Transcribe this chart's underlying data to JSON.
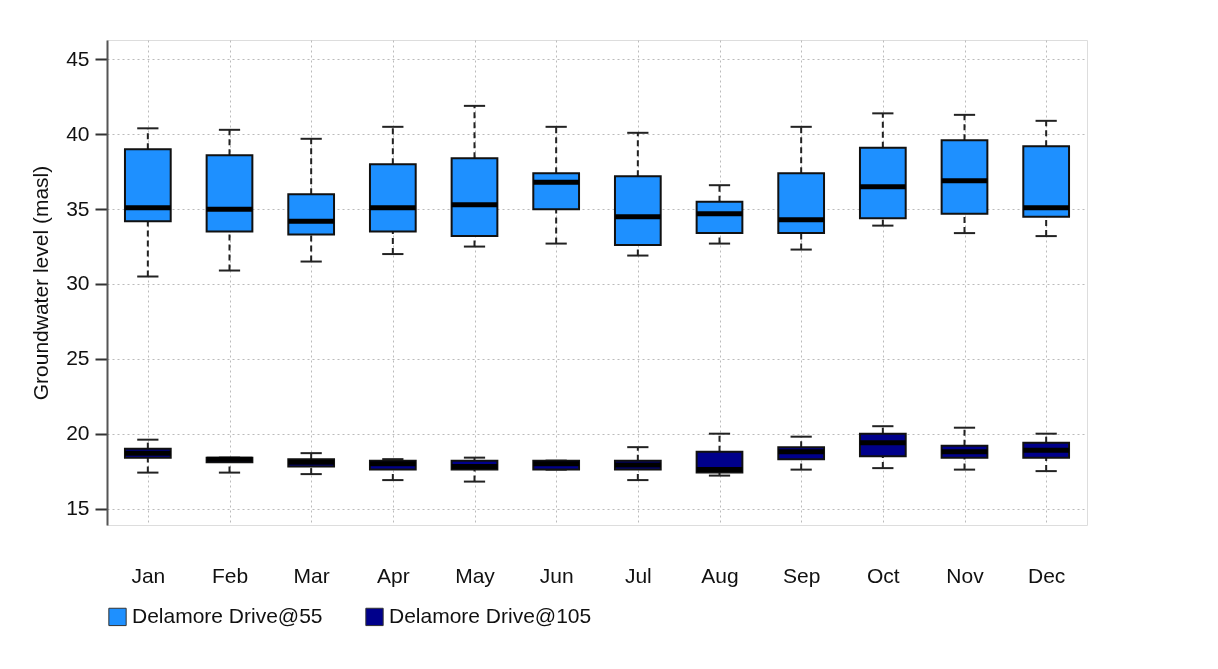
{
  "chart_data": {
    "type": "box",
    "ylabel": "Groundwater level (masl)",
    "categories": [
      "Jan",
      "Feb",
      "Mar",
      "Apr",
      "May",
      "Jun",
      "Jul",
      "Aug",
      "Sep",
      "Oct",
      "Nov",
      "Dec"
    ],
    "ylim": [
      13.9,
      46.3
    ],
    "yticks": [
      15,
      20,
      25,
      30,
      35,
      40,
      45
    ],
    "grid": true,
    "legend": "bottom",
    "series": [
      {
        "name": "Delamore Drive@55",
        "color": "#1e90ff",
        "boxes": [
          {
            "low": 30.5,
            "q1": 34.2,
            "median": 35.1,
            "q3": 39.0,
            "high": 40.4
          },
          {
            "low": 30.9,
            "q1": 33.5,
            "median": 35.0,
            "q3": 38.6,
            "high": 40.3
          },
          {
            "low": 31.5,
            "q1": 33.3,
            "median": 34.2,
            "q3": 36.0,
            "high": 39.7
          },
          {
            "low": 32.0,
            "q1": 33.5,
            "median": 35.1,
            "q3": 38.0,
            "high": 40.5
          },
          {
            "low": 32.5,
            "q1": 33.2,
            "median": 35.3,
            "q3": 38.4,
            "high": 41.9
          },
          {
            "low": 32.7,
            "q1": 35.0,
            "median": 36.8,
            "q3": 37.4,
            "high": 40.5
          },
          {
            "low": 31.9,
            "q1": 32.6,
            "median": 34.5,
            "q3": 37.2,
            "high": 40.1
          },
          {
            "low": 32.7,
            "q1": 33.4,
            "median": 34.7,
            "q3": 35.5,
            "high": 36.6
          },
          {
            "low": 32.3,
            "q1": 33.4,
            "median": 34.3,
            "q3": 37.4,
            "high": 40.5
          },
          {
            "low": 33.9,
            "q1": 34.4,
            "median": 36.5,
            "q3": 39.1,
            "high": 41.4
          },
          {
            "low": 33.4,
            "q1": 34.7,
            "median": 36.9,
            "q3": 39.6,
            "high": 41.3
          },
          {
            "low": 33.2,
            "q1": 34.5,
            "median": 35.1,
            "q3": 39.2,
            "high": 40.9
          }
        ]
      },
      {
        "name": "Delamore Drive@105",
        "color": "#00008b",
        "boxes": [
          {
            "low": 17.4,
            "q1": 18.4,
            "median": 18.7,
            "q3": 19.0,
            "high": 19.6
          },
          {
            "low": 17.4,
            "q1": 18.1,
            "median": 18.3,
            "q3": 18.4,
            "high": 18.4
          },
          {
            "low": 17.3,
            "q1": 17.8,
            "median": 18.1,
            "q3": 18.3,
            "high": 18.7
          },
          {
            "low": 16.9,
            "q1": 17.6,
            "median": 18.0,
            "q3": 18.2,
            "high": 18.3
          },
          {
            "low": 16.8,
            "q1": 17.6,
            "median": 17.8,
            "q3": 18.2,
            "high": 18.4
          },
          {
            "low": 17.6,
            "q1": 17.6,
            "median": 18.0,
            "q3": 18.2,
            "high": 18.2
          },
          {
            "low": 16.9,
            "q1": 17.6,
            "median": 17.9,
            "q3": 18.2,
            "high": 19.1
          },
          {
            "low": 17.2,
            "q1": 17.4,
            "median": 17.6,
            "q3": 18.8,
            "high": 20.0
          },
          {
            "low": 17.6,
            "q1": 18.3,
            "median": 18.8,
            "q3": 19.1,
            "high": 19.8
          },
          {
            "low": 17.7,
            "q1": 18.5,
            "median": 19.4,
            "q3": 20.0,
            "high": 20.5
          },
          {
            "low": 17.6,
            "q1": 18.4,
            "median": 18.8,
            "q3": 19.2,
            "high": 20.4
          },
          {
            "low": 17.5,
            "q1": 18.4,
            "median": 18.9,
            "q3": 19.4,
            "high": 20.0
          }
        ]
      }
    ]
  }
}
